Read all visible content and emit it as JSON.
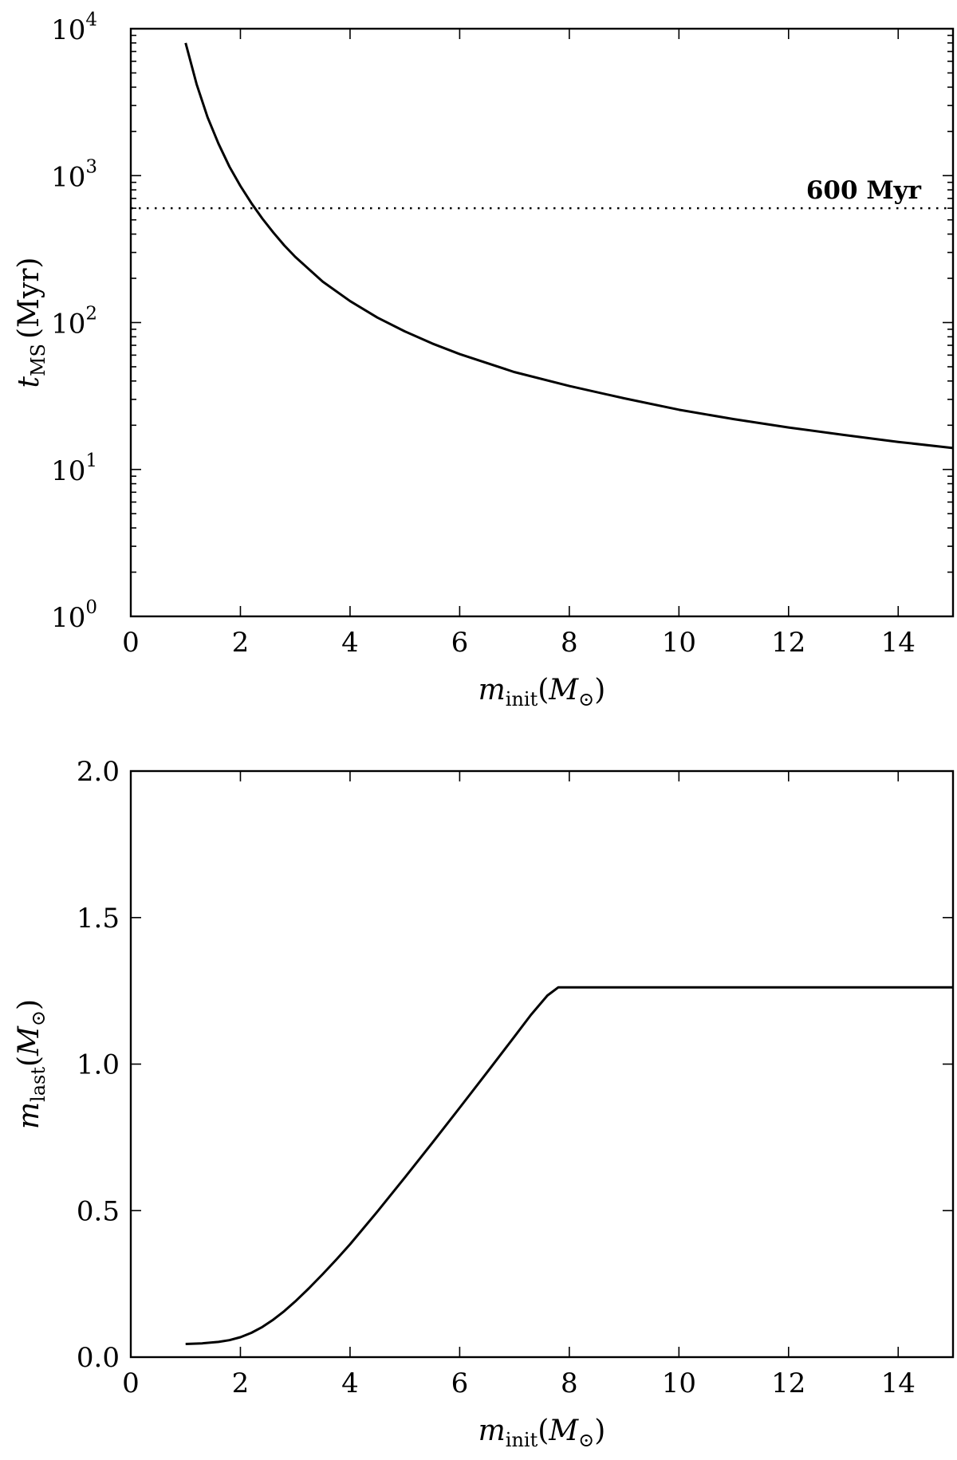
{
  "chart_data": [
    {
      "type": "line",
      "scale": {
        "y": "log"
      },
      "xlim": [
        0,
        15
      ],
      "ylim": [
        1,
        10000
      ],
      "x_ticks": [
        "0",
        "2",
        "4",
        "6",
        "8",
        "10",
        "12",
        "14"
      ],
      "y_ticks": [
        {
          "base": "10",
          "exp": "0"
        },
        {
          "base": "10",
          "exp": "1"
        },
        {
          "base": "10",
          "exp": "2"
        },
        {
          "base": "10",
          "exp": "3"
        },
        {
          "base": "10",
          "exp": "4"
        }
      ],
      "xlabel": {
        "sym": "m",
        "sub": "init",
        "unit_open": "(",
        "unit_sym": "M",
        "unit_sub": "⊙",
        "unit_close": ")"
      },
      "ylabel": {
        "sym": "t",
        "sub": "MS",
        "unit": "(Myr)"
      },
      "hline": {
        "y": 600,
        "label": "600 Myr",
        "style": "dotted"
      },
      "series": [
        {
          "x": [
            1.0,
            1.2,
            1.4,
            1.6,
            1.8,
            2.0,
            2.2,
            2.4,
            2.6,
            2.8,
            3.0,
            3.5,
            4.0,
            4.5,
            5.0,
            5.5,
            6.0,
            7.0,
            8.0,
            9.0,
            10.0,
            11.0,
            12.0,
            13.0,
            14.0,
            15.0
          ],
          "y": [
            8000,
            4200,
            2500,
            1650,
            1150,
            850,
            650,
            510,
            410,
            335,
            280,
            190,
            140,
            108,
            87,
            72,
            61,
            46,
            37,
            30.5,
            25.5,
            22,
            19.3,
            17.2,
            15.4,
            14
          ]
        }
      ]
    },
    {
      "type": "line",
      "xlim": [
        0,
        15
      ],
      "ylim": [
        0.0,
        2.0
      ],
      "x_ticks": [
        "0",
        "2",
        "4",
        "6",
        "8",
        "10",
        "12",
        "14"
      ],
      "y_ticks": [
        "0.0",
        "0.5",
        "1.0",
        "1.5",
        "2.0"
      ],
      "xlabel": {
        "sym": "m",
        "sub": "init",
        "unit_open": "(",
        "unit_sym": "M",
        "unit_sub": "⊙",
        "unit_close": ")"
      },
      "ylabel": {
        "sym": "m",
        "sub": "last",
        "unit_open": "(",
        "unit_sym": "M",
        "unit_sub": "⊙",
        "unit_close": ")"
      },
      "series": [
        {
          "x": [
            1.0,
            1.3,
            1.6,
            1.8,
            2.0,
            2.2,
            2.4,
            2.6,
            2.8,
            3.0,
            3.25,
            3.5,
            3.75,
            4.0,
            4.5,
            5.0,
            5.5,
            6.0,
            6.5,
            7.0,
            7.3,
            7.6,
            7.8,
            8.0,
            10.0,
            12.0,
            14.0,
            15.0
          ],
          "y": [
            0.045,
            0.047,
            0.052,
            0.058,
            0.068,
            0.083,
            0.103,
            0.128,
            0.157,
            0.19,
            0.235,
            0.283,
            0.333,
            0.385,
            0.497,
            0.613,
            0.731,
            0.851,
            0.972,
            1.094,
            1.168,
            1.234,
            1.262,
            1.262,
            1.262,
            1.262,
            1.262,
            1.262
          ]
        }
      ]
    }
  ]
}
